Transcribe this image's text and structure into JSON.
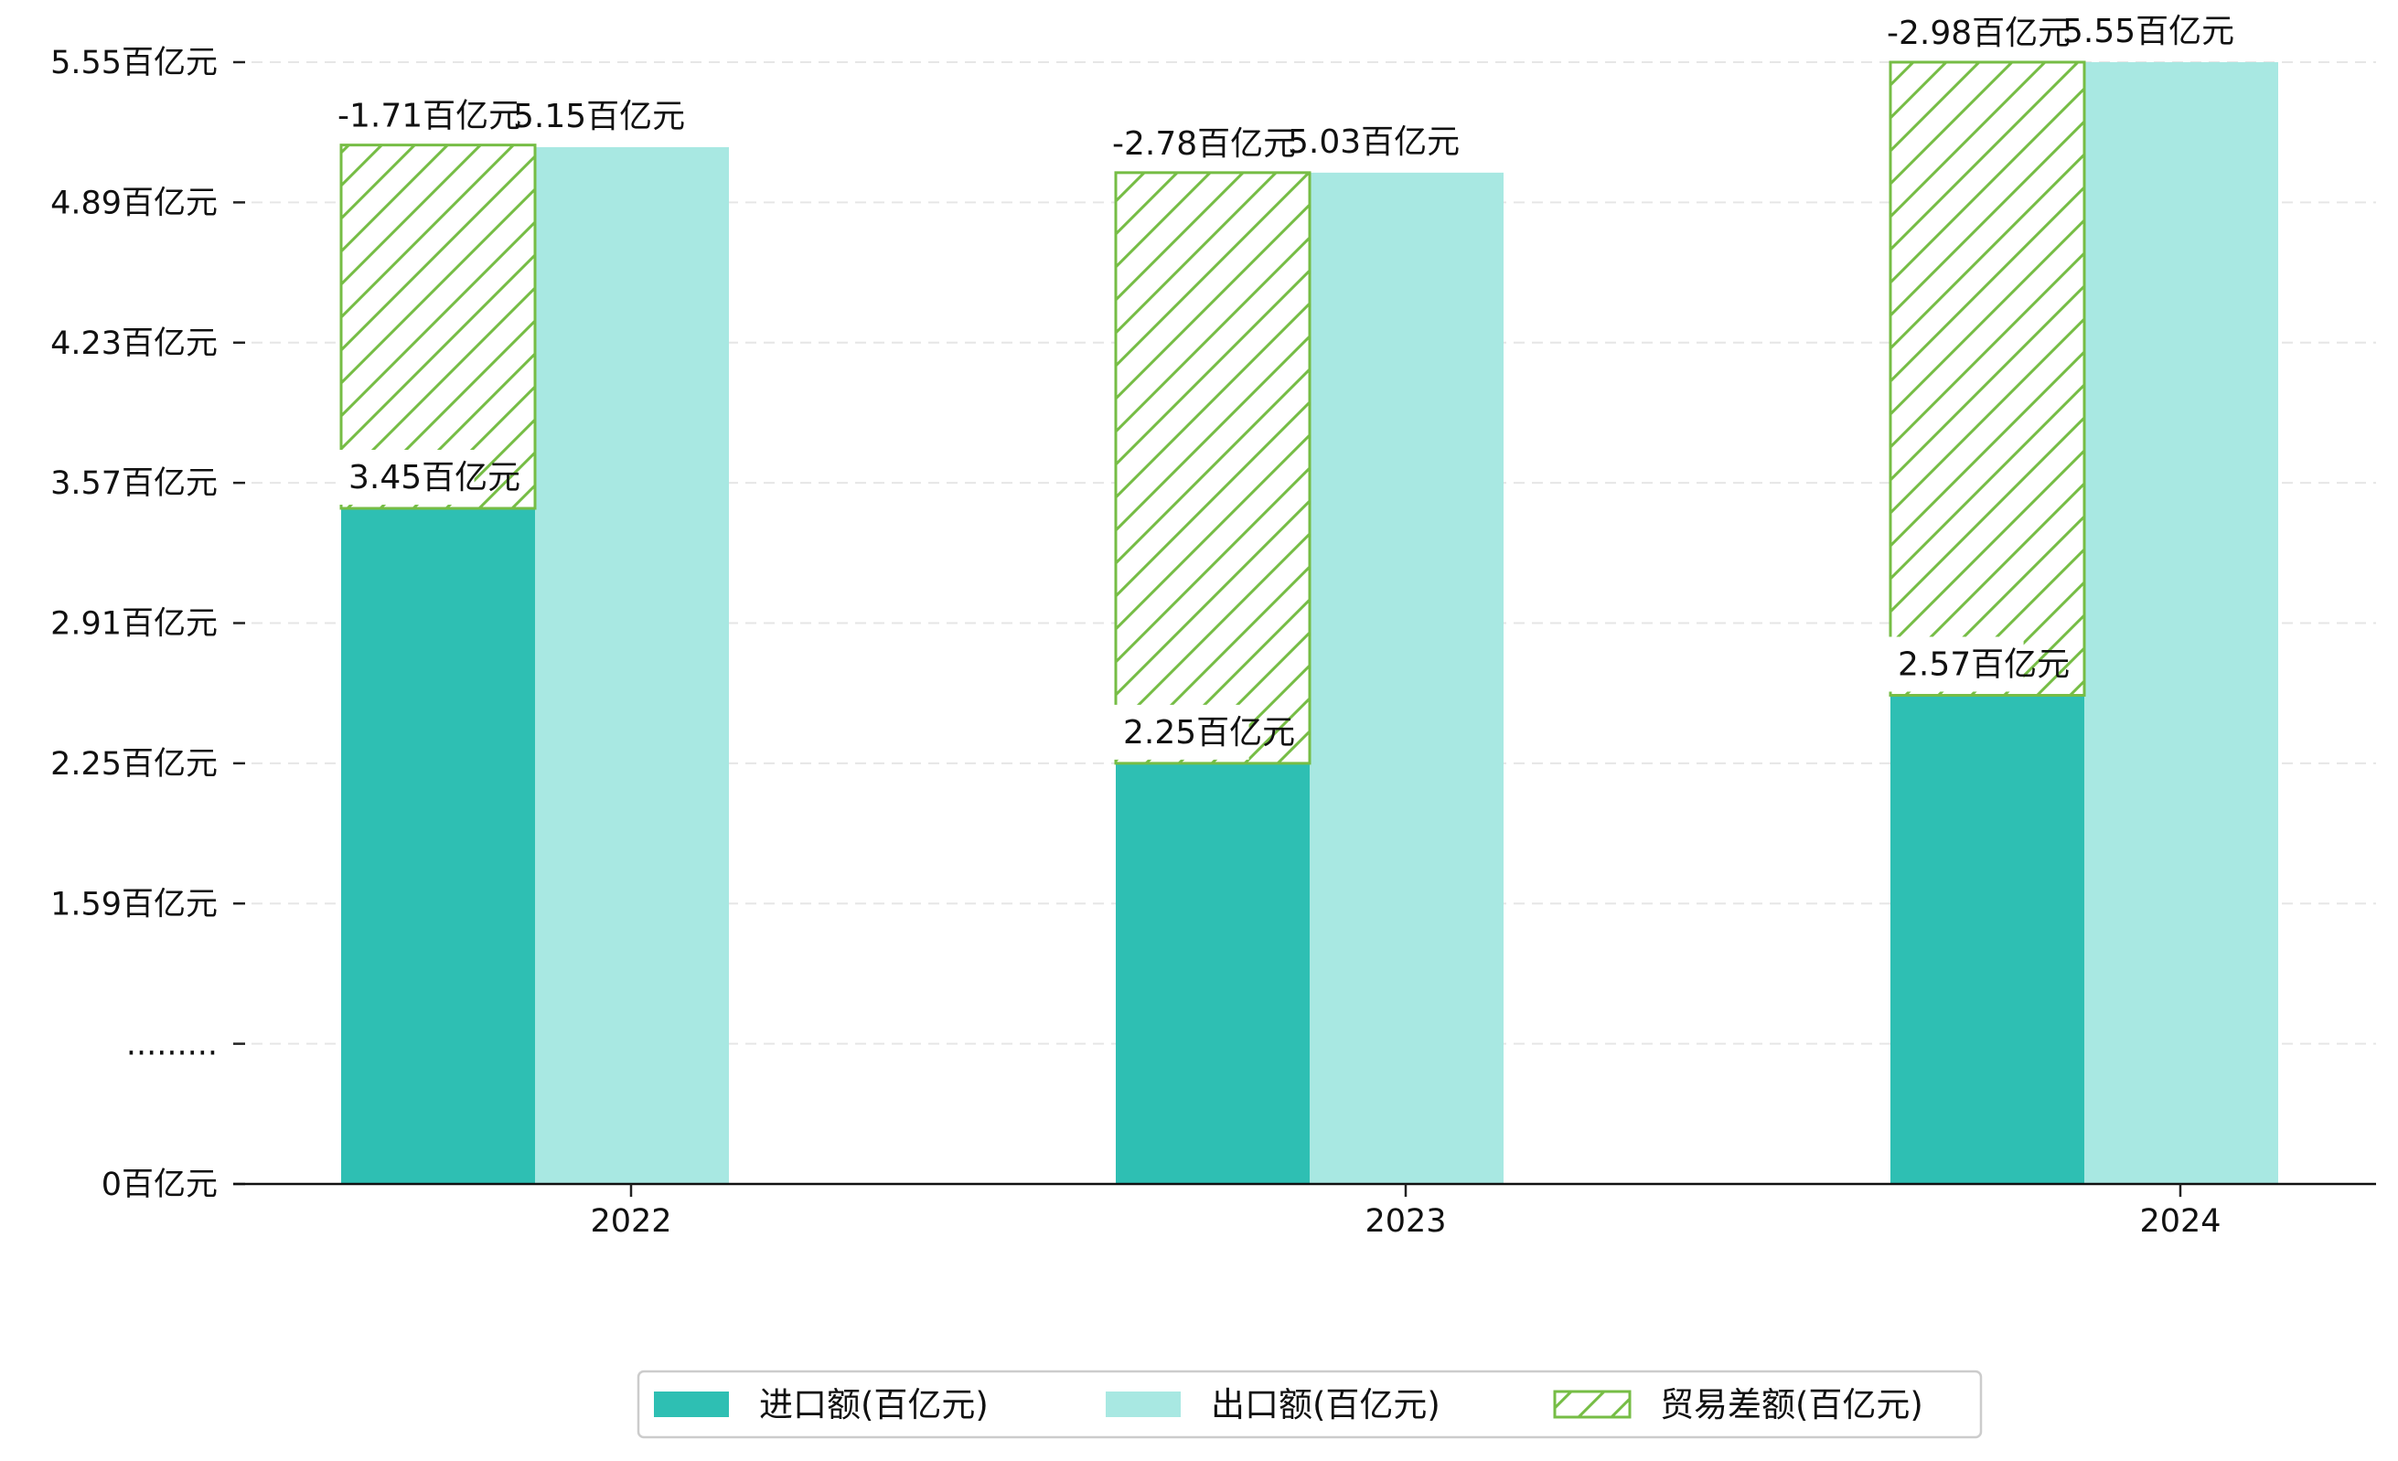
{
  "chart_data": {
    "type": "bar",
    "title": "",
    "xlabel": "",
    "ylabel": "",
    "categories": [
      "2022",
      "2023",
      "2024"
    ],
    "ylim": [
      0,
      5.55
    ],
    "y_axis_break": true,
    "y_ticks": [
      {
        "value": 0,
        "label": "0百亿元"
      },
      {
        "value": 0.6,
        "label": "........."
      },
      {
        "value": 1.59,
        "label": "1.59百亿元"
      },
      {
        "value": 2.25,
        "label": "2.25百亿元"
      },
      {
        "value": 2.91,
        "label": "2.91百亿元"
      },
      {
        "value": 3.57,
        "label": "3.57百亿元"
      },
      {
        "value": 4.23,
        "label": "4.23百亿元"
      },
      {
        "value": 4.89,
        "label": "4.89百亿元"
      },
      {
        "value": 5.55,
        "label": "5.55百亿元"
      }
    ],
    "grid": true,
    "legend_position": "bottom-center",
    "series": [
      {
        "name": "进口额(百亿元)",
        "color": "#2ebfb3",
        "values": [
          3.45,
          2.25,
          2.57
        ],
        "labels": [
          "3.45百亿元",
          "2.25百亿元",
          "2.57百亿元"
        ]
      },
      {
        "name": "出口额(百亿元)",
        "color": "#a8e8e2",
        "values": [
          5.15,
          5.03,
          5.55
        ],
        "labels": [
          "5.15百亿元",
          "5.03百亿元",
          "5.55百亿元"
        ]
      },
      {
        "name": "贸易差额(百亿元)",
        "color": "#76bd45",
        "pattern": "hatch",
        "values": [
          -1.71,
          -2.78,
          -2.98
        ],
        "labels": [
          "-1.71百亿元",
          "-2.78百亿元",
          "-2.98百亿元"
        ]
      }
    ]
  }
}
